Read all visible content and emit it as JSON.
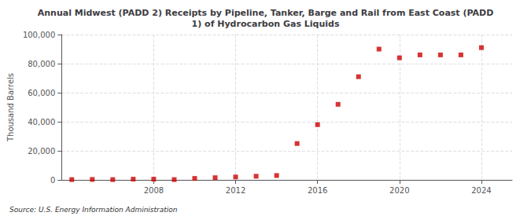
{
  "chart_data": {
    "type": "scatter",
    "title": "Annual Midwest (PADD 2) Receipts by Pipeline, Tanker, Barge and Rail from East Coast (PADD\n1) of Hydrocarbon Gas Liquids",
    "ylabel": "Thousand Barrels",
    "source": "Source: U.S. Energy Information Administration",
    "x": [
      2004,
      2005,
      2006,
      2007,
      2008,
      2009,
      2010,
      2011,
      2012,
      2013,
      2014,
      2015,
      2016,
      2017,
      2018,
      2019,
      2020,
      2021,
      2022,
      2023,
      2024
    ],
    "values": [
      200,
      300,
      200,
      500,
      500,
      200,
      1000,
      1500,
      2000,
      2500,
      3000,
      25000,
      38000,
      52000,
      71000,
      90000,
      84000,
      86000,
      86000,
      86000,
      91000
    ],
    "color": "#cc0000",
    "marker": "square",
    "xlim": [
      2003.5,
      2025.5
    ],
    "xticks": [
      2008,
      2012,
      2016,
      2020,
      2024
    ],
    "ylim": [
      0,
      100000
    ],
    "yticks": [
      0,
      {
        "value": 20000,
        "label": "20,000"
      },
      {
        "value": 40000,
        "label": "40,000"
      },
      {
        "value": 60000,
        "label": "60,000"
      },
      {
        "value": 80000,
        "label": "80,000"
      },
      {
        "value": 100000,
        "label": "100,000"
      }
    ],
    "grid": true
  }
}
